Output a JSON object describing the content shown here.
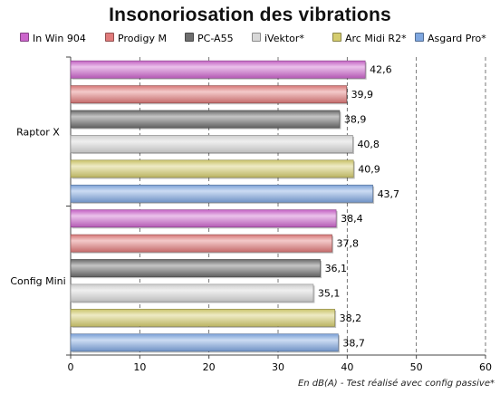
{
  "chart_data": {
    "type": "bar",
    "orientation": "horizontal",
    "title": "Insonoriosation des vibrations",
    "xlabel": "En dB(A) - Test réalisé avec config passive*",
    "categories": [
      "Raptor X",
      "Config Mini"
    ],
    "series": [
      {
        "name": "In Win 904",
        "color": "#cc66cc",
        "values": [
          42.6,
          38.4
        ],
        "labels": [
          "42,6",
          "38,4"
        ]
      },
      {
        "name": "Prodigy M",
        "color": "#e07b7b",
        "values": [
          39.9,
          37.8
        ],
        "labels": [
          "39,9",
          "37,8"
        ]
      },
      {
        "name": "PC-A55",
        "color": "#6e6e6e",
        "values": [
          38.9,
          36.1
        ],
        "labels": [
          "38,9",
          "36,1"
        ]
      },
      {
        "name": "iVektor*",
        "color": "#d8d8d8",
        "values": [
          40.8,
          35.1
        ],
        "labels": [
          "40,8",
          "35,1"
        ]
      },
      {
        "name": "Arc Midi R2*",
        "color": "#d4cc6e",
        "values": [
          40.9,
          38.2
        ],
        "labels": [
          "40,9",
          "38,2"
        ]
      },
      {
        "name": "Asgard Pro*",
        "color": "#7fa7e0",
        "values": [
          43.7,
          38.7
        ],
        "labels": [
          "43,7",
          "38,7"
        ]
      }
    ],
    "xlim": [
      0,
      60
    ],
    "xticks": [
      0,
      10,
      20,
      30,
      40,
      50,
      60
    ],
    "grid": "vertical dashed",
    "legend": "top"
  }
}
